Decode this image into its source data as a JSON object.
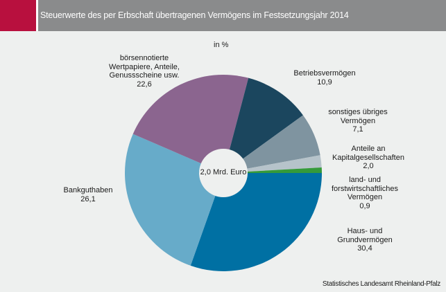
{
  "header": {
    "title": "Steuerwerte des per Erbschaft übertragenen Vermögens im Festsetzungsjahr 2014",
    "accent_color": "#b8103e",
    "bar_color": "#8a8b8c"
  },
  "chart_data": {
    "type": "pie",
    "subtype": "donut",
    "title": "Steuerwerte des per Erbschaft übertragenen Vermögens im Festsetzungsjahr 2014",
    "unit_label": "in %",
    "center_label": "2,0 Mrd. Euro",
    "start": "3 o'clock, clockwise",
    "slices": [
      {
        "name": "Haus- und Grundvermögen",
        "lines": [
          "Haus- und",
          "Grundvermögen"
        ],
        "value": 30.4,
        "value_label": "30,4",
        "color": "#0070a3"
      },
      {
        "name": "Bankguthaben",
        "lines": [
          "Bankguthaben"
        ],
        "value": 26.1,
        "value_label": "26,1",
        "color": "#67abc9"
      },
      {
        "name": "börsennotierte Wertpapiere, Anteile, Genussscheine usw.",
        "lines": [
          "börsennotierte",
          "Wertpapiere, Anteile,",
          "Genussscheine usw."
        ],
        "value": 22.6,
        "value_label": "22,6",
        "color": "#8b658f"
      },
      {
        "name": "Betriebsvermögen",
        "lines": [
          "Betriebsvermögen"
        ],
        "value": 10.9,
        "value_label": "10,9",
        "color": "#1b465e"
      },
      {
        "name": "sonstiges übriges Vermögen",
        "lines": [
          "sonstiges übriges",
          "Vermögen"
        ],
        "value": 7.1,
        "value_label": "7,1",
        "color": "#7f94a0"
      },
      {
        "name": "Anteile an Kapitalgesellschaften",
        "lines": [
          "Anteile an",
          "Kapitalgesellschaften"
        ],
        "value": 2.0,
        "value_label": "2,0",
        "color": "#b6c3ca"
      },
      {
        "name": "land- und forstwirtschaftliches Vermögen",
        "lines": [
          "land- und",
          "forstwirtschaftliches",
          "Vermögen"
        ],
        "value": 0.9,
        "value_label": "0,9",
        "color": "#359a3a"
      }
    ]
  },
  "source": "Statistisches Landesamt Rheinland-Pfalz"
}
